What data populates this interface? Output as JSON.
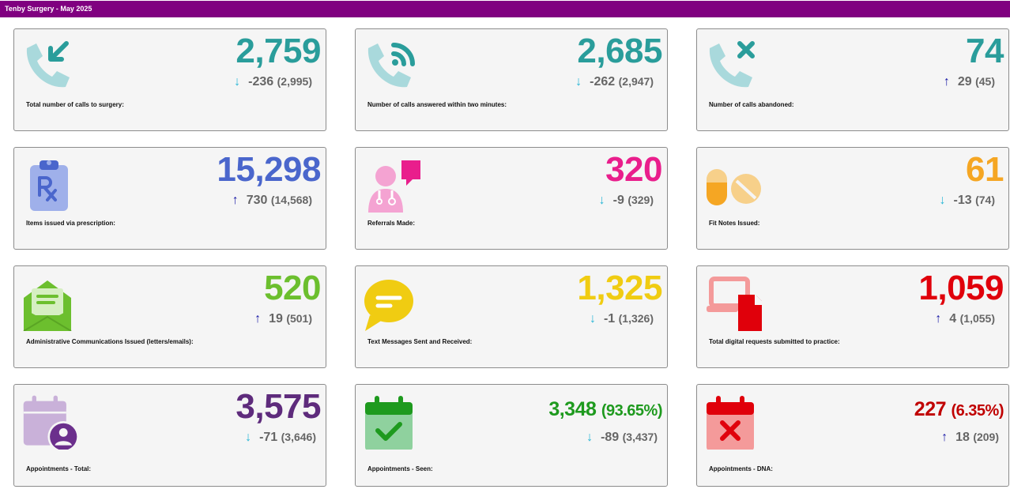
{
  "header": {
    "title": "Tenby Surgery - May 2025"
  },
  "colors": {
    "header": "#800080",
    "teal": "#2a9d9b",
    "blue": "#4a66cc",
    "pink": "#e91e8c",
    "orange": "#f5a623",
    "green": "#6cbf2e",
    "yellow": "#f0cc12",
    "red": "#e0000b",
    "purple": "#5e2b7c",
    "darkgreen": "#1e9a1e",
    "darkred": "#c00000",
    "arrow_down": "#29b6d6",
    "arrow_up": "#1a1aa6"
  },
  "cards": [
    {
      "icon": "phone-incoming-icon",
      "value": "2,759",
      "change": "-236",
      "prev": "(2,995)",
      "direction": "down",
      "label": "Total number of calls to surgery:"
    },
    {
      "icon": "phone-answered-icon",
      "value": "2,685",
      "change": "-262",
      "prev": "(2,947)",
      "direction": "down",
      "label": "Number of calls answered within two minutes:"
    },
    {
      "icon": "phone-abandoned-icon",
      "value": "74",
      "change": "29",
      "prev": "(45)",
      "direction": "up",
      "label": "Number of calls abandoned:"
    },
    {
      "icon": "prescription-icon",
      "value": "15,298",
      "change": "730",
      "prev": "(14,568)",
      "direction": "up",
      "label": "Items issued via prescription:"
    },
    {
      "icon": "referral-icon",
      "value": "320",
      "change": "-9",
      "prev": "(329)",
      "direction": "down",
      "label": "Referrals Made:"
    },
    {
      "icon": "pills-icon",
      "value": "61",
      "change": "-13",
      "prev": "(74)",
      "direction": "down",
      "label": "Fit Notes Issued:"
    },
    {
      "icon": "envelope-icon",
      "value": "520",
      "change": "19",
      "prev": "(501)",
      "direction": "up",
      "label": "Administrative Communications Issued (letters/emails):"
    },
    {
      "icon": "chat-bubble-icon",
      "value": "1,325",
      "change": "-1",
      "prev": "(1,326)",
      "direction": "down",
      "label": "Text Messages Sent and Received:"
    },
    {
      "icon": "digital-request-icon",
      "value": "1,059",
      "change": "4",
      "prev": "(1,055)",
      "direction": "up",
      "label": "Total digital requests submitted to practice:"
    },
    {
      "icon": "calendar-user-icon",
      "value": "3,575",
      "change": "-71",
      "prev": "(3,646)",
      "direction": "down",
      "label": "Appointments - Total:"
    },
    {
      "icon": "calendar-check-icon",
      "value": "3,348",
      "pct": "(93.65%)",
      "change": "-89",
      "prev": "(3,437)",
      "direction": "down",
      "label": "Appointments - Seen:"
    },
    {
      "icon": "calendar-cross-icon",
      "value": "227",
      "pct": "(6.35%)",
      "change": "18",
      "prev": "(209)",
      "direction": "up",
      "label": "Appointments - DNA:"
    }
  ]
}
